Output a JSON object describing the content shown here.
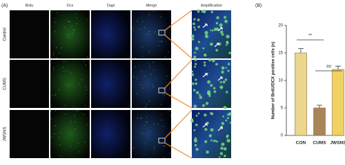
{
  "panel_a": {
    "label": "(A)",
    "columns": [
      "Brdu",
      "Dcx",
      "Dapi",
      "Merge",
      "Amplification"
    ],
    "rows": [
      "Control",
      "CUMS",
      "JWSNS"
    ]
  },
  "chart_data": {
    "type": "bar",
    "panel_label": "(B)",
    "y_label": "Number of BrdU/DCX positive cells (n)",
    "categories": [
      "CON",
      "CUMS",
      "JWSNS"
    ],
    "values": [
      15,
      5,
      12
    ],
    "errors": [
      0.8,
      0.5,
      0.6
    ],
    "colors": [
      "#ead68e",
      "#a8865a",
      "#f0d264"
    ],
    "ylim": [
      0,
      20
    ],
    "yticks": [
      0,
      5,
      10,
      15,
      20
    ],
    "annotations": [
      "**",
      "##"
    ]
  }
}
